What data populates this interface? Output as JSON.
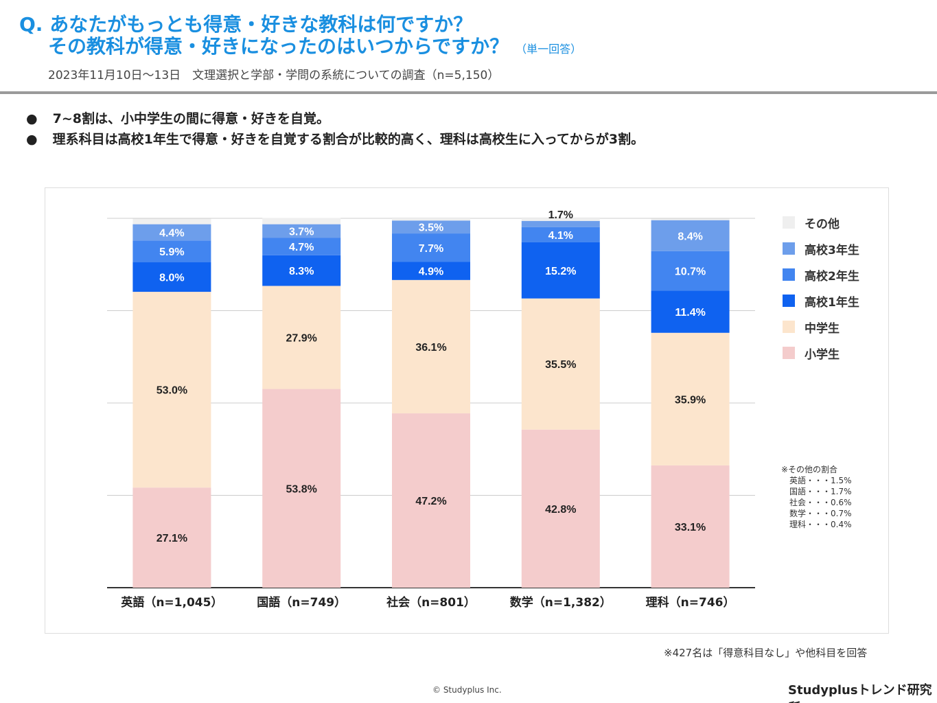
{
  "header": {
    "question_line1": "Q. あなたがもっとも得意・好きな教科は何ですか？",
    "question_line2": "その教科が得意・好きになったのはいつからですか？",
    "answer_type": "（単一回答）",
    "survey": "2023年11月10日～13日　文理選択と学部・学問の系統についての調査（n=5,150）"
  },
  "bullets": [
    "7~8割は、小中学生の間に得意・好きを自覚。",
    "理系科目は高校1年生で得意・好きを自覚する割合が比較的高く、理科は高校生に入ってからが3割。"
  ],
  "chart_data": {
    "type": "bar",
    "stacked": true,
    "orientation": "vertical",
    "categories": [
      "英語（n=1,045）",
      "国語（n=749）",
      "社会（n=801）",
      "数学（n=1,382）",
      "理科（n=746）"
    ],
    "series": [
      {
        "name": "小学生",
        "color": "#f4cccc",
        "values": [
          27.1,
          53.8,
          47.2,
          42.8,
          33.1
        ]
      },
      {
        "name": "中学生",
        "color": "#fce5cd",
        "values": [
          53.0,
          27.9,
          36.1,
          35.5,
          35.9
        ]
      },
      {
        "name": "高校1年生",
        "color": "#0f62f0",
        "values": [
          8.0,
          8.3,
          4.9,
          15.2,
          11.4
        ]
      },
      {
        "name": "高校2年生",
        "color": "#4285f0",
        "values": [
          5.9,
          4.7,
          7.7,
          4.1,
          10.7
        ]
      },
      {
        "name": "高校3年生",
        "color": "#6d9eeb",
        "values": [
          4.4,
          3.7,
          3.5,
          1.7,
          8.4
        ]
      },
      {
        "name": "その他",
        "color": "#efefef",
        "values": [
          1.5,
          1.7,
          0.6,
          0.7,
          0.4
        ]
      }
    ],
    "label_format": "{v}%",
    "ylim": [
      0,
      100
    ],
    "grid": true,
    "legend": "right",
    "legend_order": [
      "その他",
      "高校3年生",
      "高校2年生",
      "高校1年生",
      "中学生",
      "小学生"
    ]
  },
  "other_note": {
    "title": "※その他の割合",
    "rows": [
      "英語・・・1.5%",
      "国語・・・1.7%",
      "社会・・・0.6%",
      "数学・・・0.7%",
      "理科・・・0.4%"
    ]
  },
  "footnote": "※427名は「得意科目なし」や他科目を回答",
  "copyright": "© Studyplus Inc.",
  "brand": "Studyplusトレンド研究所"
}
